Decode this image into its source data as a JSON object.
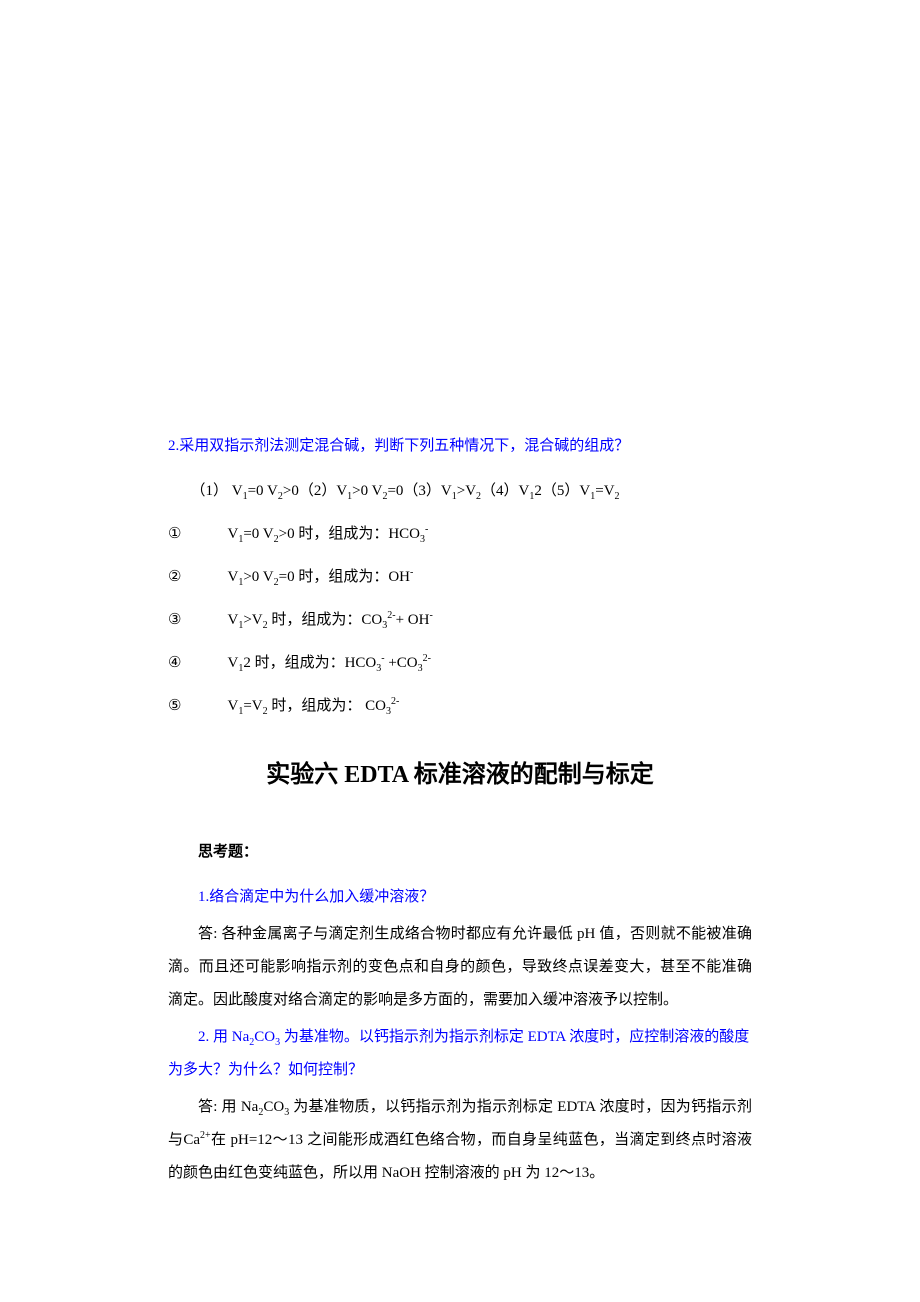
{
  "page": {
    "bg": "#ffffff",
    "text_color": "#000000",
    "link_color": "#0000ff",
    "body_fontsize": 15,
    "title_fontsize": 24
  },
  "q2": {
    "prompt": "2.采用双指示剂法测定混合碱，判断下列五种情况下，混合碱的组成？",
    "options_line": "（1）   V₁=0 V₂>0（2）V₁>0 V₂=0（3）V₁>V₂（4）V₁<V₂（5）V₁=V₂",
    "answers": [
      {
        "num": "①",
        "body": "V₁=0 V₂>0 时，组成为：HCO₃⁻"
      },
      {
        "num": "②",
        "body": "V₁>0 V₂=0 时，组成为：OH⁻"
      },
      {
        "num": "③",
        "body": "V₁>V₂ 时，组成为：CO₃²⁻+ OH⁻"
      },
      {
        "num": "④",
        "body": "V₁<V₂ 时，组成为：HCO₃⁻ +CO₃²⁻"
      },
      {
        "num": "⑤",
        "body": "V₁=V₂ 时，组成为：  CO₃²⁻"
      }
    ]
  },
  "exp6": {
    "title": "实验六   EDTA 标准溶液的配制与标定",
    "section_label": "思考题：",
    "q1": "1.络合滴定中为什么加入缓冲溶液？",
    "a1": "答: 各种金属离子与滴定剂生成络合物时都应有允许最低 pH 值，否则就不能被准确滴。而且还可能影响指示剂的变色点和自身的颜色，导致终点误差变大，甚至不能准确滴定。因此酸度对络合滴定的影响是多方面的，需要加入缓冲溶液予以控制。",
    "q2": "2. 用 Na₂CO₃ 为基准物。以钙指示剂为指示剂标定 EDTA 浓度时，应控制溶液的酸度为多大？为什么？如何控制？",
    "a2": "答: 用 Na₂CO₃ 为基准物质，以钙指示剂为指示剂标定 EDTA 浓度时，因为钙指示剂与Ca²⁺在 pH=12～13 之间能形成酒红色络合物，而自身呈纯蓝色，当滴定到终点时溶液的颜色由红色变纯蓝色，所以用 NaOH 控制溶液的 pH 为 12～13。"
  }
}
